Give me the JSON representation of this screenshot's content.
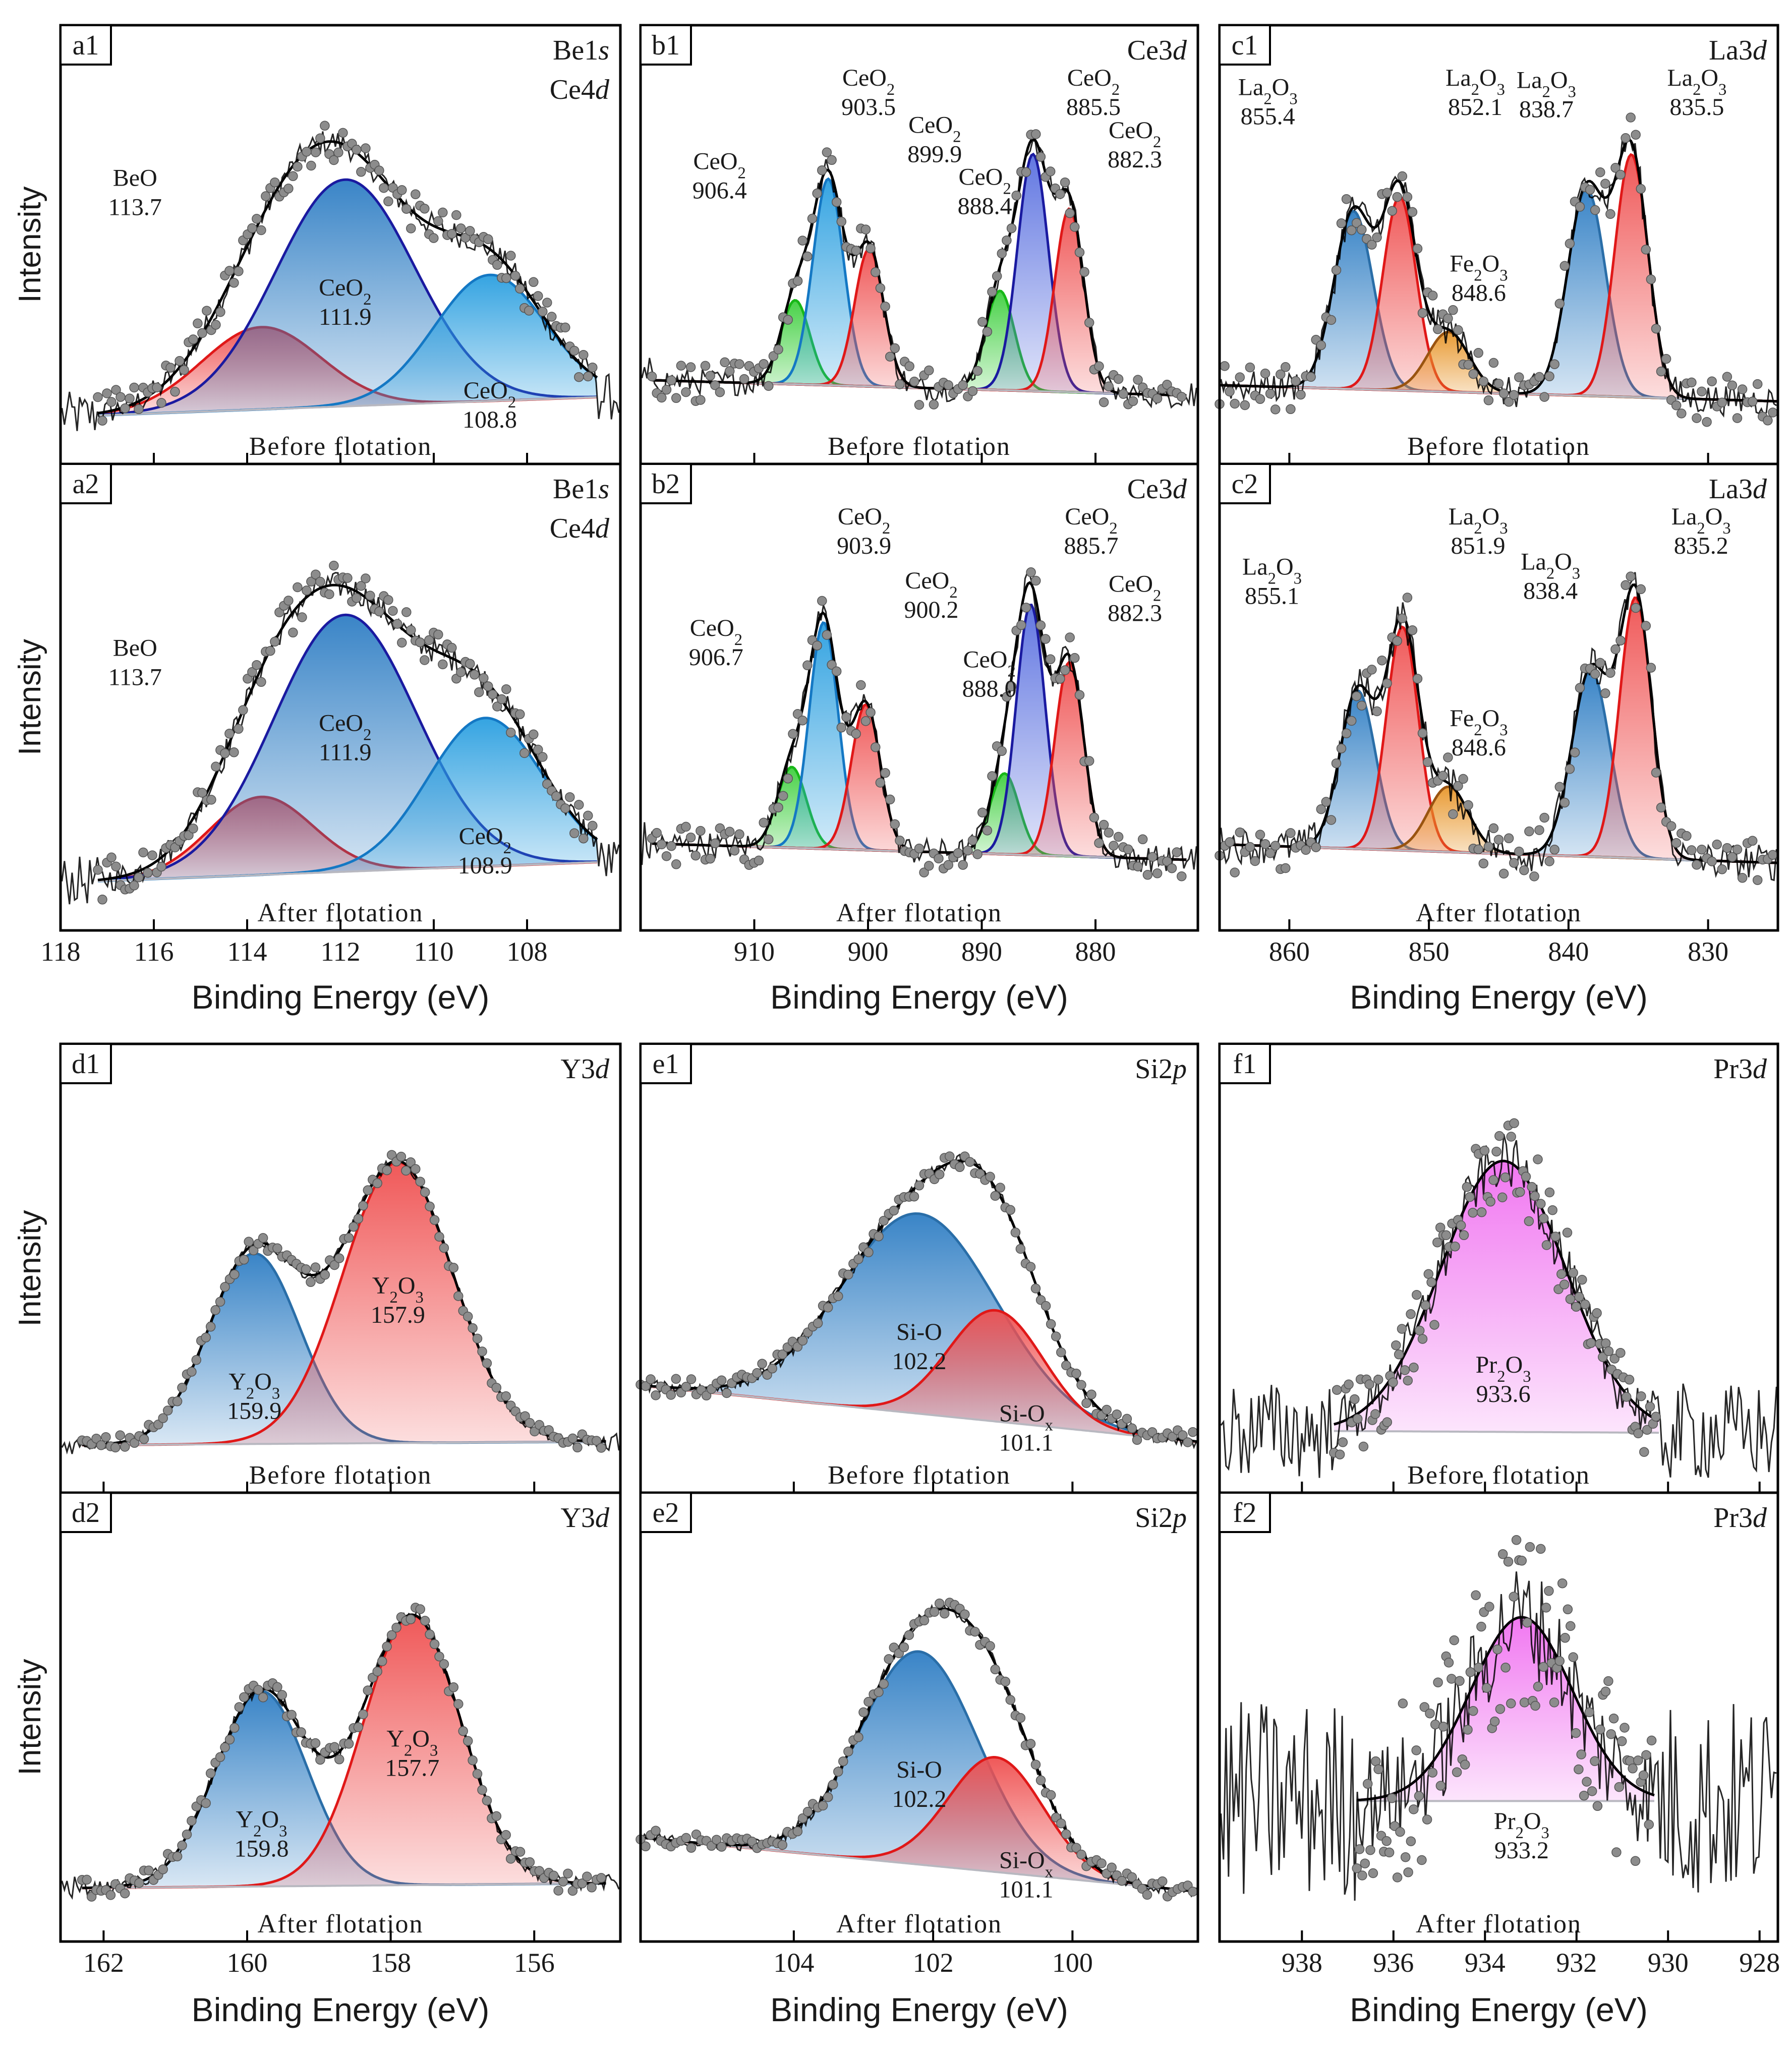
{
  "figure": {
    "y_axis_label": "Intensity",
    "x_axis_label": "Binding Energy (eV)",
    "row_labels": [
      "Before flotation",
      "After flotation"
    ]
  },
  "colors": {
    "blue_line": "#2a6ea8",
    "blue_fill": "#2f7ec4",
    "cyan_line": "#1478c4",
    "cyan_fill": "#2a9fe0",
    "navy_line": "#1a1aa0",
    "red_line": "#e01818",
    "red_fill": "#ef5050",
    "green_line": "#18b818",
    "green_fill": "#3ecf3e",
    "orange_line": "#9a5410",
    "orange_fill": "#e8962a",
    "magenta_line": "#c020c0",
    "magenta_fill": "#f070f0",
    "envelope": "#000000",
    "points": "#8c8c8c",
    "background_line": "#b8b8c0"
  },
  "chart_data": [
    {
      "id": "a",
      "type": "line",
      "xlim": [
        118,
        106
      ],
      "xticks": [
        118,
        116,
        114,
        112,
        110,
        108
      ],
      "panels": [
        {
          "id": "a1",
          "tag": "a1",
          "title_lines": [
            "Be1s",
            "Ce4d"
          ],
          "condition": "Before flotation",
          "background": [
            1.0,
            2.0
          ],
          "noise": 1.0,
          "data_range": [
            117.2,
            106.5
          ],
          "peaks": [
            {
              "species": "BeO",
              "position": 113.7,
              "pos_label": "113.7",
              "height": 4.5,
              "fwhm": 3.0,
              "color": "red"
            },
            {
              "species": "CeO2",
              "position": 111.9,
              "pos_label": "111.9",
              "height": 12.4,
              "fwhm": 3.5,
              "color": "blue_navy"
            },
            {
              "species": "CeO2",
              "position": 108.8,
              "pos_label": "108.8",
              "height": 6.9,
              "fwhm": 2.8,
              "color": "cyan"
            }
          ]
        },
        {
          "id": "a2",
          "tag": "a2",
          "title_lines": [
            "Be1s",
            "Ce4d"
          ],
          "condition": "After flotation",
          "background": [
            1.0,
            2.0
          ],
          "noise": 1.0,
          "data_range": [
            117.2,
            106.5
          ],
          "peaks": [
            {
              "species": "BeO",
              "position": 113.7,
              "pos_label": "113.7",
              "height": 4.1,
              "fwhm": 2.6,
              "color": "red"
            },
            {
              "species": "CeO2",
              "position": 111.9,
              "pos_label": "111.9",
              "height": 13.5,
              "fwhm": 3.6,
              "color": "blue_navy"
            },
            {
              "species": "CeO2",
              "position": 108.9,
              "pos_label": "108.9",
              "height": 7.8,
              "fwhm": 2.9,
              "color": "cyan"
            }
          ]
        }
      ]
    },
    {
      "id": "b",
      "type": "line",
      "xlim": [
        920,
        871
      ],
      "xticks": [
        910,
        900,
        890,
        880
      ],
      "panels": [
        {
          "id": "b1",
          "tag": "b1",
          "title_lines": [
            "Ce3d"
          ],
          "condition": "Before flotation",
          "background": [
            3.5,
            2.5
          ],
          "noise": 1.2,
          "data_range": [
            919.0,
            872.0
          ],
          "peaks": [
            {
              "species": "CeO2",
              "position": 906.4,
              "pos_label": "906.4",
              "height": 5.5,
              "fwhm": 3.0,
              "color": "green"
            },
            {
              "species": "CeO2",
              "position": 903.5,
              "pos_label": "903.5",
              "height": 13.5,
              "fwhm": 3.2,
              "color": "cyan"
            },
            {
              "species": "CeO2",
              "position": 899.9,
              "pos_label": "899.9",
              "height": 9.0,
              "fwhm": 3.0,
              "color": "red"
            },
            {
              "species": "CeO2",
              "position": 888.4,
              "pos_label": "888.4",
              "height": 6.5,
              "fwhm": 3.0,
              "color": "green"
            },
            {
              "species": "CeO2",
              "position": 885.5,
              "pos_label": "885.5",
              "height": 15.5,
              "fwhm": 3.2,
              "color": "navy_fill"
            },
            {
              "species": "CeO2",
              "position": 882.3,
              "pos_label": "882.3",
              "height": 12.0,
              "fwhm": 3.0,
              "color": "red"
            }
          ]
        },
        {
          "id": "b2",
          "tag": "b2",
          "title_lines": [
            "Ce3d"
          ],
          "condition": "After flotation",
          "background": [
            3.5,
            2.5
          ],
          "noise": 1.2,
          "data_range": [
            919.0,
            872.0
          ],
          "peaks": [
            {
              "species": "CeO2",
              "position": 906.7,
              "pos_label": "906.7",
              "height": 5.0,
              "fwhm": 3.0,
              "color": "green"
            },
            {
              "species": "CeO2",
              "position": 903.9,
              "pos_label": "903.9",
              "height": 14.0,
              "fwhm": 3.0,
              "color": "cyan"
            },
            {
              "species": "CeO2",
              "position": 900.2,
              "pos_label": "900.2",
              "height": 9.0,
              "fwhm": 3.0,
              "color": "red"
            },
            {
              "species": "CeO2",
              "position": 888.0,
              "pos_label": "888.0",
              "height": 5.0,
              "fwhm": 3.0,
              "color": "green"
            },
            {
              "species": "CeO2",
              "position": 885.7,
              "pos_label": "885.7",
              "height": 15.5,
              "fwhm": 3.0,
              "color": "navy_fill"
            },
            {
              "species": "CeO2",
              "position": 882.3,
              "pos_label": "882.3",
              "height": 12.0,
              "fwhm": 3.0,
              "color": "red"
            }
          ]
        }
      ]
    },
    {
      "id": "c",
      "type": "line",
      "xlim": [
        865,
        825
      ],
      "xticks": [
        860,
        850,
        840,
        830
      ],
      "panels": [
        {
          "id": "c1",
          "tag": "c1",
          "title_lines": [
            "La3d"
          ],
          "condition": "Before flotation",
          "background": [
            3.0,
            2.0
          ],
          "noise": 1.4,
          "data_range": [
            865.0,
            825.0
          ],
          "peaks": [
            {
              "species": "La2O3",
              "position": 855.4,
              "pos_label": "855.4",
              "height": 11.0,
              "fwhm": 3.3,
              "color": "blue"
            },
            {
              "species": "La2O3",
              "position": 852.1,
              "pos_label": "852.1",
              "height": 12.0,
              "fwhm": 2.8,
              "color": "red"
            },
            {
              "species": "Fe2O3",
              "position": 848.6,
              "pos_label": "848.6",
              "height": 3.7,
              "fwhm": 3.5,
              "color": "orange"
            },
            {
              "species": "La2O3",
              "position": 838.7,
              "pos_label": "838.7",
              "height": 12.8,
              "fwhm": 3.2,
              "color": "blue"
            },
            {
              "species": "La2O3",
              "position": 835.5,
              "pos_label": "835.5",
              "height": 15.0,
              "fwhm": 2.8,
              "color": "red"
            }
          ]
        },
        {
          "id": "c2",
          "tag": "c2",
          "title_lines": [
            "La3d"
          ],
          "condition": "After flotation",
          "background": [
            3.0,
            2.0
          ],
          "noise": 1.4,
          "data_range": [
            865.0,
            825.0
          ],
          "peaks": [
            {
              "species": "La2O3",
              "position": 855.1,
              "pos_label": "855.1",
              "height": 8.5,
              "fwhm": 3.0,
              "color": "blue"
            },
            {
              "species": "La2O3",
              "position": 851.9,
              "pos_label": "851.9",
              "height": 12.0,
              "fwhm": 2.7,
              "color": "red"
            },
            {
              "species": "Fe2O3",
              "position": 848.6,
              "pos_label": "848.6",
              "height": 3.5,
              "fwhm": 3.4,
              "color": "orange"
            },
            {
              "species": "La2O3",
              "position": 838.4,
              "pos_label": "838.4",
              "height": 10.0,
              "fwhm": 3.2,
              "color": "blue"
            },
            {
              "species": "La2O3",
              "position": 835.2,
              "pos_label": "835.2",
              "height": 14.0,
              "fwhm": 2.7,
              "color": "red"
            }
          ]
        }
      ]
    },
    {
      "id": "d",
      "type": "line",
      "xlim": [
        162.6,
        154.8
      ],
      "xticks": [
        162,
        160,
        158,
        156
      ],
      "panels": [
        {
          "id": "d1",
          "tag": "d1",
          "title_lines": [
            "Y3d"
          ],
          "condition": "Before flotation",
          "background": [
            1.0,
            1.2
          ],
          "noise": 0.4,
          "data_range": [
            162.3,
            155.0
          ],
          "peaks": [
            {
              "species": "Y2O3",
              "position": 159.9,
              "pos_label": "159.9",
              "height": 11.0,
              "fwhm": 1.5,
              "color": "blue"
            },
            {
              "species": "Y2O3",
              "position": 157.9,
              "pos_label": "157.9",
              "height": 16.2,
              "fwhm": 1.8,
              "color": "red"
            }
          ]
        },
        {
          "id": "d2",
          "tag": "d2",
          "title_lines": [
            "Y3d"
          ],
          "condition": "After flotation",
          "background": [
            1.0,
            1.2
          ],
          "noise": 0.4,
          "data_range": [
            162.3,
            155.0
          ],
          "peaks": [
            {
              "species": "Y2O3",
              "position": 159.8,
              "pos_label": "159.8",
              "height": 8.4,
              "fwhm": 1.5,
              "color": "blue"
            },
            {
              "species": "Y2O3",
              "position": 157.7,
              "pos_label": "157.7",
              "height": 11.6,
              "fwhm": 1.6,
              "color": "red"
            }
          ]
        }
      ]
    },
    {
      "id": "e",
      "type": "line",
      "xlim": [
        106.2,
        98.2
      ],
      "xticks": [
        104,
        102,
        100
      ],
      "panels": [
        {
          "id": "e1",
          "tag": "e1",
          "title_lines": [
            "Si2p"
          ],
          "condition": "Before flotation",
          "background": [
            4.5,
            1.2
          ],
          "noise": 0.5,
          "data_range": [
            106.2,
            98.2
          ],
          "leading_tail": true,
          "peaks": [
            {
              "species": "Si-O",
              "position": 102.2,
              "pos_label": "102.2",
              "height": 11.7,
              "fwhm": 2.6,
              "color": "blue"
            },
            {
              "species": "Si-Ox",
              "position": 101.1,
              "pos_label": "101.1",
              "height": 6.5,
              "fwhm": 1.6,
              "color": "red"
            }
          ]
        },
        {
          "id": "e2",
          "tag": "e2",
          "title_lines": [
            "Si2p"
          ],
          "condition": "After flotation",
          "background": [
            4.5,
            1.2
          ],
          "noise": 0.5,
          "data_range": [
            106.2,
            98.2
          ],
          "leading_tail": true,
          "peaks": [
            {
              "species": "Si-O",
              "position": 102.2,
              "pos_label": "102.2",
              "height": 13.0,
              "fwhm": 2.0,
              "color": "blue"
            },
            {
              "species": "Si-Ox",
              "position": 101.1,
              "pos_label": "101.1",
              "height": 7.0,
              "fwhm": 1.6,
              "color": "red"
            }
          ]
        }
      ]
    },
    {
      "id": "f",
      "type": "line",
      "xlim": [
        939.8,
        927.6
      ],
      "xticks": [
        938,
        936,
        934,
        932,
        930,
        928
      ],
      "panels": [
        {
          "id": "f1",
          "tag": "f1",
          "title_lines": [
            "Pr3d"
          ],
          "condition": "Before flotation",
          "background": [
            1.8,
            1.7
          ],
          "noise": 2.2,
          "data_range": [
            937.3,
            930.2
          ],
          "peaks": [
            {
              "species": "Pr2O3",
              "position": 933.6,
              "pos_label": "933.6",
              "height": 15.5,
              "fwhm": 3.2,
              "color": "magenta"
            }
          ]
        },
        {
          "id": "f2",
          "tag": "f2",
          "title_lines": [
            "Pr3d"
          ],
          "condition": "After flotation",
          "background": [
            4.2,
            4.2
          ],
          "noise": 3.0,
          "data_range": [
            936.8,
            930.3
          ],
          "peaks": [
            {
              "species": "Pr2O3",
              "position": 933.2,
              "pos_label": "933.2",
              "height": 7.0,
              "fwhm": 2.6,
              "color": "magenta"
            }
          ]
        }
      ]
    }
  ]
}
